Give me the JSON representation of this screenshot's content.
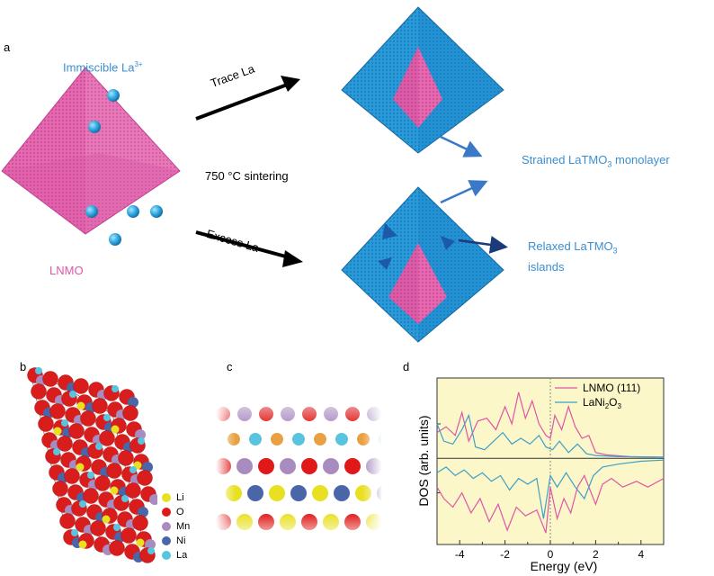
{
  "panels": {
    "a": "a",
    "b": "b",
    "c": "c",
    "d": "d"
  },
  "panel_a": {
    "immiscible_label": "Immiscible La",
    "immiscible_sup": "3+",
    "lnmo_label": "LNMO",
    "trace_label": "Trace La",
    "excess_label": "Excess La",
    "sintering_label": "750 °C sintering",
    "strained_label": "Strained LaTMO",
    "strained_sub": "3",
    "strained_tail": " monolayer",
    "relaxed_label": "Relaxed LaTMO",
    "relaxed_sub": "3",
    "relaxed_tail": "islands"
  },
  "panel_b": {
    "legend": [
      {
        "label": "Li",
        "color": "#e8e020"
      },
      {
        "label": "O",
        "color": "#e01818"
      },
      {
        "label": "Mn",
        "color": "#a88cc0"
      },
      {
        "label": "Ni",
        "color": "#4a66a8"
      },
      {
        "label": "La",
        "color": "#58c4e0"
      }
    ]
  },
  "colors": {
    "pink": "#e055a8",
    "blue": "#2a9ad8",
    "navy": "#1a3a7a",
    "yellow_bg": "#fbf7c8"
  },
  "chart_data": {
    "type": "line",
    "xlabel": "Energy (eV)",
    "ylabel": "DOS (arb. units)",
    "xlim": [
      -5,
      5
    ],
    "xticks": [
      -4,
      -2,
      0,
      2,
      4
    ],
    "xtick_labels": [
      "-4",
      "-2",
      "0",
      "2",
      "4"
    ],
    "legend_position": "top-right",
    "series": [
      {
        "name": "LNMO (111)",
        "color": "#e055a8",
        "up": [
          [
            -5,
            0.45
          ],
          [
            -4.6,
            0.55
          ],
          [
            -4.2,
            0.4
          ],
          [
            -3.9,
            0.8
          ],
          [
            -3.6,
            0.3
          ],
          [
            -3.2,
            0.65
          ],
          [
            -2.8,
            0.7
          ],
          [
            -2.4,
            0.5
          ],
          [
            -2.0,
            0.9
          ],
          [
            -1.7,
            0.6
          ],
          [
            -1.4,
            1.15
          ],
          [
            -1.1,
            0.7
          ],
          [
            -0.8,
            1.0
          ],
          [
            -0.5,
            0.6
          ],
          [
            -0.2,
            0.4
          ],
          [
            0.0,
            0.35
          ],
          [
            0.2,
            0.75
          ],
          [
            0.5,
            0.5
          ],
          [
            0.8,
            0.9
          ],
          [
            1.1,
            0.55
          ],
          [
            1.4,
            0.35
          ],
          [
            1.7,
            0.4
          ],
          [
            2.0,
            0.1
          ],
          [
            2.5,
            0.06
          ],
          [
            3.5,
            0.03
          ],
          [
            5,
            0.02
          ]
        ],
        "down": [
          [
            -5,
            -0.5
          ],
          [
            -4.7,
            -0.7
          ],
          [
            -4.3,
            -0.85
          ],
          [
            -3.9,
            -0.6
          ],
          [
            -3.5,
            -0.95
          ],
          [
            -3.1,
            -0.7
          ],
          [
            -2.7,
            -1.1
          ],
          [
            -2.3,
            -0.8
          ],
          [
            -1.9,
            -1.25
          ],
          [
            -1.5,
            -0.85
          ],
          [
            -1.1,
            -1.0
          ],
          [
            -0.6,
            -0.9
          ],
          [
            -0.2,
            -1.3
          ],
          [
            0.0,
            -0.5
          ],
          [
            0.3,
            -1.05
          ],
          [
            0.6,
            -0.7
          ],
          [
            0.9,
            -0.95
          ],
          [
            1.2,
            -0.5
          ],
          [
            1.5,
            -0.3
          ],
          [
            2.0,
            -0.8
          ],
          [
            2.3,
            -0.45
          ],
          [
            2.7,
            -0.35
          ],
          [
            3.2,
            -0.5
          ],
          [
            3.8,
            -0.4
          ],
          [
            4.3,
            -0.5
          ],
          [
            5,
            -0.35
          ]
        ]
      },
      {
        "name": "LaNi2O3",
        "color": "#3ea0c8",
        "up": [
          [
            -5,
            0.6
          ],
          [
            -4.7,
            0.3
          ],
          [
            -4.3,
            0.25
          ],
          [
            -3.9,
            0.5
          ],
          [
            -3.6,
            0.75
          ],
          [
            -3.3,
            0.2
          ],
          [
            -2.9,
            0.15
          ],
          [
            -2.5,
            0.3
          ],
          [
            -2.1,
            0.45
          ],
          [
            -1.7,
            0.25
          ],
          [
            -1.3,
            0.35
          ],
          [
            -0.9,
            0.25
          ],
          [
            -0.5,
            0.4
          ],
          [
            -0.2,
            0.2
          ],
          [
            0.1,
            0.15
          ],
          [
            0.4,
            0.3
          ],
          [
            0.8,
            0.1
          ],
          [
            1.2,
            0.25
          ],
          [
            1.6,
            0.08
          ],
          [
            2.0,
            0.05
          ],
          [
            3.0,
            0.03
          ],
          [
            5,
            0.02
          ]
        ],
        "down": [
          [
            -5,
            -0.25
          ],
          [
            -4.6,
            -0.15
          ],
          [
            -4.2,
            -0.3
          ],
          [
            -3.8,
            -0.2
          ],
          [
            -3.4,
            -0.35
          ],
          [
            -3.0,
            -0.25
          ],
          [
            -2.6,
            -0.4
          ],
          [
            -2.2,
            -0.3
          ],
          [
            -1.8,
            -0.55
          ],
          [
            -1.4,
            -0.35
          ],
          [
            -1.0,
            -0.45
          ],
          [
            -0.6,
            -0.35
          ],
          [
            -0.3,
            -1.05
          ],
          [
            0.0,
            -0.3
          ],
          [
            0.3,
            -0.5
          ],
          [
            0.7,
            -0.25
          ],
          [
            1.1,
            -0.5
          ],
          [
            1.5,
            -0.7
          ],
          [
            1.9,
            -0.3
          ],
          [
            2.3,
            -0.15
          ],
          [
            3.0,
            -0.1
          ],
          [
            4.0,
            -0.05
          ],
          [
            5,
            -0.03
          ]
        ]
      }
    ]
  }
}
